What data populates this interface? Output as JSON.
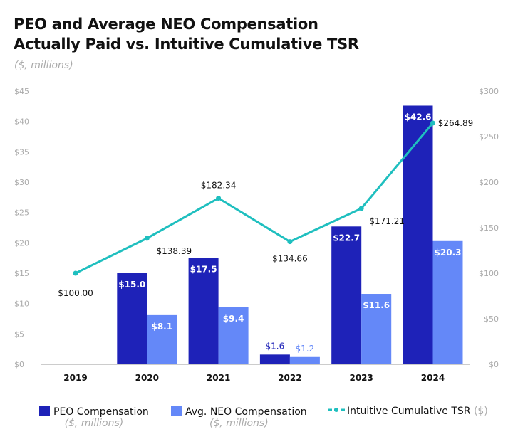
{
  "chart_data": {
    "type": "bar",
    "title_lines": [
      "PEO and Average NEO Compensation",
      "Actually Paid vs. Intuitive Cumulative TSR"
    ],
    "subtitle": "($, millions)",
    "categories": [
      "2019",
      "2020",
      "2021",
      "2022",
      "2023",
      "2024"
    ],
    "left_axis": {
      "ylim": [
        0,
        45
      ],
      "ticks": [
        "$0",
        "$5",
        "$10",
        "$15",
        "$20",
        "$25",
        "$30",
        "$35",
        "$40",
        "$45"
      ],
      "tick_values": [
        0,
        5,
        10,
        15,
        20,
        25,
        30,
        35,
        40,
        45
      ]
    },
    "right_axis": {
      "ylim": [
        0,
        300
      ],
      "ticks": [
        "$0",
        "$50",
        "$100",
        "$150",
        "$200",
        "$250",
        "$300"
      ],
      "tick_values": [
        0,
        50,
        100,
        150,
        200,
        250,
        300
      ]
    },
    "series": [
      {
        "name": "PEO Compensation",
        "name_sub": "($, millions)",
        "kind": "bar",
        "axis": "left",
        "color": "#1e22b8",
        "values": [
          null,
          15.0,
          17.5,
          1.6,
          22.7,
          42.6
        ],
        "labels": [
          "",
          "$15.0",
          "$17.5",
          "$1.6",
          "$22.7",
          "$42.6"
        ]
      },
      {
        "name": "Avg. NEO Compensation",
        "name_sub": "($, millions)",
        "kind": "bar",
        "axis": "left",
        "color": "#6488f8",
        "values": [
          null,
          8.1,
          9.4,
          1.2,
          11.6,
          20.3
        ],
        "labels": [
          "",
          "$8.1",
          "$9.4",
          "$1.2",
          "$11.6",
          "$20.3"
        ]
      },
      {
        "name": "Intuitive Cumulative TSR",
        "name_sub": "($)",
        "kind": "line",
        "axis": "right",
        "color": "#1fbfbf",
        "values": [
          100.0,
          138.39,
          182.34,
          134.66,
          171.21,
          264.89
        ],
        "labels": [
          "$100.00",
          "$138.39",
          "$182.34",
          "$134.66",
          "$171.21",
          "$264.89"
        ]
      }
    ],
    "grid": false,
    "legend_position": "bottom"
  }
}
